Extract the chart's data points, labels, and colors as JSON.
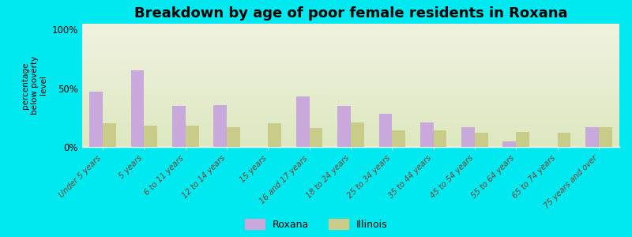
{
  "title": "Breakdown by age of poor female residents in Roxana",
  "ylabel": "percentage\nbelow poverty\nlevel",
  "categories": [
    "Under 5 years",
    "5 years",
    "6 to 11 years",
    "12 to 14 years",
    "15 years",
    "16 and 17 years",
    "18 to 24 years",
    "25 to 34 years",
    "35 to 44 years",
    "45 to 54 years",
    "55 to 64 years",
    "65 to 74 years",
    "75 years and over"
  ],
  "roxana": [
    47,
    65,
    35,
    36,
    0,
    43,
    35,
    28,
    21,
    17,
    5,
    0,
    17
  ],
  "illinois": [
    20,
    18,
    18,
    17,
    20,
    16,
    21,
    14,
    14,
    12,
    13,
    12,
    17
  ],
  "roxana_color": "#c9a8dc",
  "illinois_color": "#c8cc88",
  "bg_top": "#f0f2e0",
  "bg_bottom": "#dde8c0",
  "outer_bg": "#00e8f0",
  "yticks": [
    0,
    50,
    100
  ],
  "ytick_labels": [
    "0%",
    "50%",
    "100%"
  ],
  "ylim": [
    0,
    105
  ],
  "title_fontsize": 13,
  "bar_width": 0.32
}
